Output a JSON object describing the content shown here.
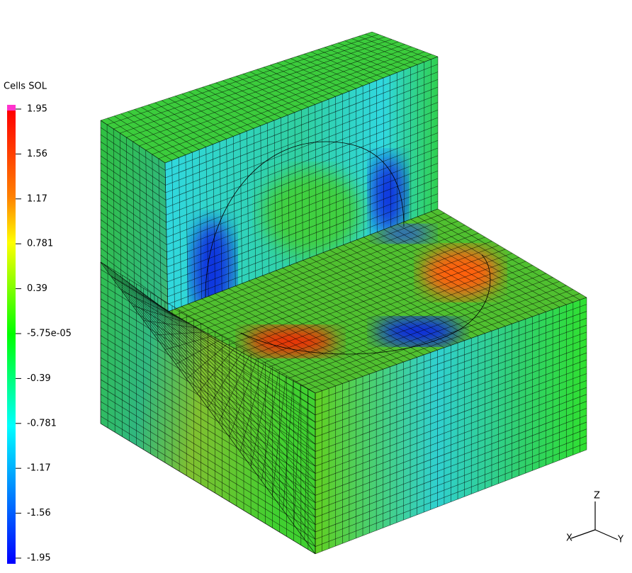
{
  "colorbar": {
    "title": "Cells SOL",
    "ticks": [
      "1.95",
      "1.56",
      "1.17",
      "0.781",
      "0.39",
      "-5.75e-05",
      "-0.39",
      "-0.781",
      "-1.17",
      "-1.56",
      "-1.95"
    ]
  },
  "triad": {
    "x": "X",
    "y": "Y",
    "z": "Z"
  }
}
